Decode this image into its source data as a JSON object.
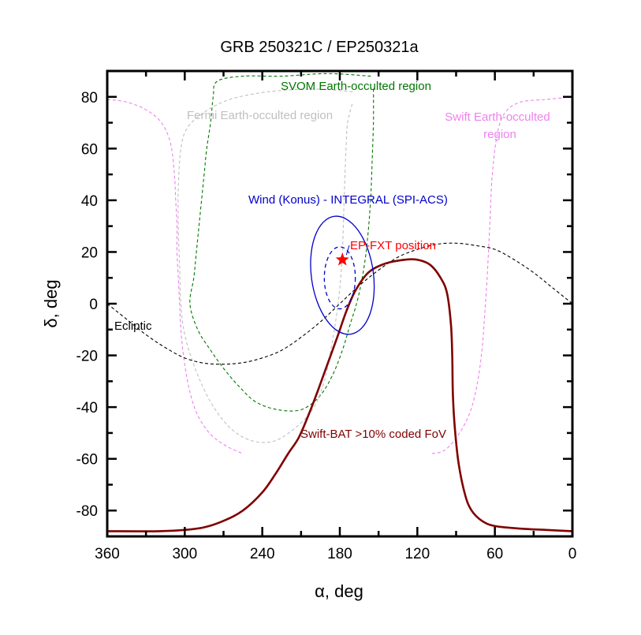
{
  "chart_data": {
    "type": "line",
    "title": "GRB 250321C / EP250321a",
    "xlabel": "α, deg",
    "ylabel": "δ, deg",
    "xlim": [
      360,
      0
    ],
    "ylim": [
      -90,
      90
    ],
    "x_ticks": [
      360,
      300,
      240,
      180,
      120,
      60,
      0
    ],
    "y_ticks": [
      80,
      60,
      40,
      20,
      0,
      -20,
      -40,
      -60,
      -80
    ],
    "grid": false,
    "legend": "none (inline annotations)",
    "series": [
      {
        "name": "SVOM Earth-occulted region",
        "style": "dashed",
        "color": "#007700",
        "points": [
          [
            156,
            88
          ],
          [
            190,
            89
          ],
          [
            225,
            88
          ],
          [
            255,
            88
          ],
          [
            275,
            86
          ],
          [
            278,
            80
          ],
          [
            280,
            70
          ],
          [
            283,
            60
          ],
          [
            285,
            50
          ],
          [
            287,
            40
          ],
          [
            289,
            30
          ],
          [
            291,
            20
          ],
          [
            293,
            10
          ],
          [
            296,
            0
          ],
          [
            290,
            -10
          ],
          [
            280,
            -18
          ],
          [
            270,
            -25
          ],
          [
            258,
            -32
          ],
          [
            245,
            -38
          ],
          [
            228,
            -41
          ],
          [
            210,
            -41
          ],
          [
            196,
            -36
          ],
          [
            186,
            -28
          ],
          [
            178,
            -18
          ],
          [
            172,
            -8
          ],
          [
            166,
            2
          ],
          [
            161,
            15
          ],
          [
            158,
            28
          ],
          [
            156,
            42
          ],
          [
            155,
            55
          ],
          [
            154,
            70
          ],
          [
            154,
            84
          ]
        ]
      },
      {
        "name": "Fermi Earth-occulted region",
        "style": "dashed",
        "color": "#c0c0c0",
        "points": [
          [
            170,
            82
          ],
          [
            200,
            83
          ],
          [
            235,
            82
          ],
          [
            265,
            79
          ],
          [
            285,
            74
          ],
          [
            298,
            68
          ],
          [
            303,
            60
          ],
          [
            305,
            45
          ],
          [
            305,
            30
          ],
          [
            304,
            15
          ],
          [
            303,
            0
          ],
          [
            300,
            -12
          ],
          [
            292,
            -25
          ],
          [
            280,
            -38
          ],
          [
            265,
            -48
          ],
          [
            248,
            -53
          ],
          [
            230,
            -53
          ],
          [
            212,
            -47
          ],
          [
            200,
            -40
          ],
          [
            192,
            -30
          ],
          [
            187,
            -18
          ],
          [
            183,
            -6
          ],
          [
            180,
            6
          ],
          [
            178,
            20
          ],
          [
            177,
            35
          ],
          [
            176,
            50
          ],
          [
            175,
            62
          ],
          [
            174,
            70
          ],
          [
            170,
            78
          ]
        ]
      },
      {
        "name": "Swift Earth-occulted region (left lobe)",
        "style": "dashed",
        "color": "#ee82ee",
        "points": [
          [
            360,
            79
          ],
          [
            345,
            78
          ],
          [
            330,
            75
          ],
          [
            318,
            70
          ],
          [
            311,
            62
          ],
          [
            308,
            50
          ],
          [
            307,
            40
          ],
          [
            306,
            30
          ],
          [
            306,
            20
          ],
          [
            305,
            10
          ],
          [
            304,
            0
          ],
          [
            303,
            -10
          ],
          [
            301,
            -20
          ],
          [
            297,
            -32
          ],
          [
            291,
            -42
          ],
          [
            281,
            -50
          ],
          [
            268,
            -55
          ],
          [
            255,
            -58
          ]
        ]
      },
      {
        "name": "Swift Earth-occulted region (right lobe)",
        "style": "dashed",
        "color": "#ee82ee",
        "points": [
          [
            0,
            80
          ],
          [
            20,
            79
          ],
          [
            40,
            78
          ],
          [
            52,
            74
          ],
          [
            58,
            66
          ],
          [
            62,
            50
          ],
          [
            64,
            30
          ],
          [
            66,
            10
          ],
          [
            68,
            -5
          ],
          [
            70,
            -18
          ],
          [
            74,
            -32
          ],
          [
            80,
            -43
          ],
          [
            90,
            -52
          ],
          [
            100,
            -57
          ],
          [
            110,
            -58
          ]
        ]
      },
      {
        "name": "Ecliptic",
        "style": "dashed",
        "color": "#000000",
        "points": [
          [
            360,
            0
          ],
          [
            345,
            -6
          ],
          [
            330,
            -12
          ],
          [
            315,
            -17
          ],
          [
            300,
            -21
          ],
          [
            285,
            -23
          ],
          [
            270,
            -23.4
          ],
          [
            255,
            -22.8
          ],
          [
            240,
            -21
          ],
          [
            225,
            -18
          ],
          [
            210,
            -13
          ],
          [
            195,
            -7
          ],
          [
            180,
            0
          ],
          [
            165,
            7
          ],
          [
            150,
            13
          ],
          [
            135,
            18
          ],
          [
            120,
            21
          ],
          [
            105,
            23
          ],
          [
            90,
            23.4
          ],
          [
            75,
            22.5
          ],
          [
            60,
            21
          ],
          [
            45,
            17
          ],
          [
            30,
            12
          ],
          [
            15,
            6
          ],
          [
            0,
            0
          ]
        ]
      },
      {
        "name": "Swift-BAT >10% coded FoV",
        "style": "solid",
        "color": "#800000",
        "points": [
          [
            360,
            -88
          ],
          [
            320,
            -88
          ],
          [
            300,
            -87.5
          ],
          [
            285,
            -86.5
          ],
          [
            270,
            -84
          ],
          [
            255,
            -80
          ],
          [
            240,
            -73
          ],
          [
            230,
            -66
          ],
          [
            220,
            -58
          ],
          [
            212,
            -52
          ],
          [
            205,
            -44
          ],
          [
            198,
            -35
          ],
          [
            190,
            -24
          ],
          [
            182,
            -13
          ],
          [
            175,
            -3
          ],
          [
            168,
            5
          ],
          [
            158,
            12
          ],
          [
            145,
            15.5
          ],
          [
            130,
            17
          ],
          [
            120,
            17
          ],
          [
            110,
            15
          ],
          [
            102,
            10
          ],
          [
            97,
            4
          ],
          [
            94,
            -8
          ],
          [
            93,
            -20
          ],
          [
            92.5,
            -35
          ],
          [
            91,
            -48
          ],
          [
            88,
            -62
          ],
          [
            83,
            -74
          ],
          [
            78,
            -80
          ],
          [
            70,
            -84
          ],
          [
            60,
            -86
          ],
          [
            40,
            -87
          ],
          [
            20,
            -87.5
          ],
          [
            0,
            -88
          ]
        ]
      },
      {
        "name": "Wind (Konus) - INTEGRAL (SPI-ACS) outer",
        "style": "solid",
        "color": "#0000cc",
        "ellipse": {
          "center": [
            178,
            11
          ],
          "ra_halfwidth": 24,
          "dec_halfheight": 23,
          "tilt": "slight"
        }
      },
      {
        "name": "Wind (Konus) - INTEGRAL (SPI-ACS) inner",
        "style": "dashed",
        "color": "#0000cc",
        "ellipse": {
          "center": [
            180,
            10
          ],
          "ra_halfwidth": 12,
          "dec_halfheight": 12
        }
      },
      {
        "name": "EP-FXT position",
        "style": "marker-star",
        "color": "#ff0000",
        "points": [
          [
            178,
            17
          ]
        ]
      }
    ],
    "annotations": [
      {
        "text": "SVOM Earth-occulted region",
        "color": "#007700",
        "at": [
          170,
          84
        ]
      },
      {
        "text": "Fermi Earth-occulted region",
        "color": "#c0c0c0",
        "at": [
          250,
          73
        ]
      },
      {
        "text": "Swift Earth-occulted region",
        "color": "#ee82ee",
        "at": [
          70,
          71
        ]
      },
      {
        "text": "Wind (Konus) - INTEGRAL (SPI-ACS)",
        "color": "#0000cc",
        "at": [
          185,
          40
        ]
      },
      {
        "text": "EP-FXT position",
        "color": "#ff0000",
        "at": [
          150,
          22
        ]
      },
      {
        "text": "Ecliptic",
        "color": "#000000",
        "at": [
          345,
          -9
        ]
      },
      {
        "text": "Swift-BAT >10% coded FoV",
        "color": "#800000",
        "at": [
          170,
          -50
        ]
      }
    ]
  },
  "labels": {
    "title": "GRB 250321C / EP250321a",
    "xlabel": "α, deg",
    "ylabel": "δ, deg",
    "svom": "SVOM Earth-occulted region",
    "fermi": "Fermi Earth-occulted region",
    "swift_line1": "Swift Earth-occulted",
    "swift_line2": "region",
    "wind": "Wind (Konus) - INTEGRAL (SPI-ACS)",
    "ep": "EP-FXT position",
    "ecliptic": "Ecliptic",
    "bat": "Swift-BAT >10% coded FoV"
  }
}
